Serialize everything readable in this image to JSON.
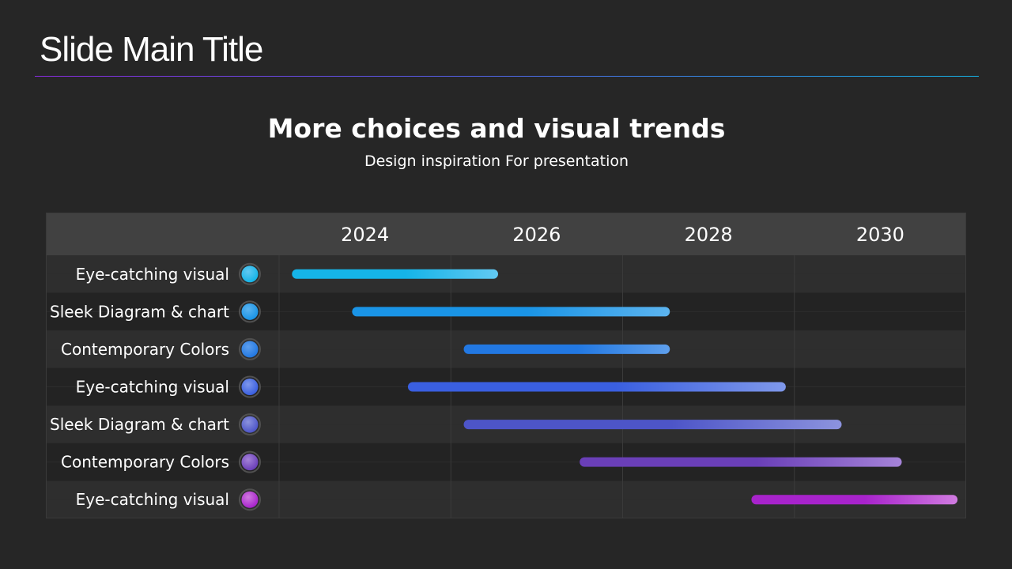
{
  "slide": {
    "title": "Slide Main Title"
  },
  "chart_data": {
    "type": "gantt",
    "title": "More choices and visual trends",
    "subtitle": "Design inspiration For presentation",
    "x_ticks": [
      "2024",
      "2026",
      "2028",
      "2030"
    ],
    "x_range": [
      2023,
      2031
    ],
    "tasks": [
      {
        "label": "Eye-catching visual",
        "start": 2023.15,
        "end": 2025.55,
        "color_start": "#15b4e8",
        "color_end": "#62c9f2"
      },
      {
        "label": "Sleek Diagram & chart",
        "start": 2023.85,
        "end": 2027.55,
        "color_start": "#1a94e6",
        "color_end": "#5cb4ef"
      },
      {
        "label": "Contemporary Colors",
        "start": 2025.15,
        "end": 2027.55,
        "color_start": "#2278e2",
        "color_end": "#5e9fec"
      },
      {
        "label": "Eye-catching visual",
        "start": 2024.5,
        "end": 2028.9,
        "color_start": "#3a5fe0",
        "color_end": "#7f98ea"
      },
      {
        "label": "Sleek Diagram & chart",
        "start": 2025.15,
        "end": 2029.55,
        "color_start": "#4d55c8",
        "color_end": "#8c93de"
      },
      {
        "label": "Contemporary Colors",
        "start": 2026.5,
        "end": 2030.25,
        "color_start": "#6a3fb8",
        "color_end": "#a583d8"
      },
      {
        "label": "Eye-catching visual",
        "start": 2028.5,
        "end": 2030.9,
        "color_start": "#a823cc",
        "color_end": "#d07be0"
      }
    ]
  }
}
